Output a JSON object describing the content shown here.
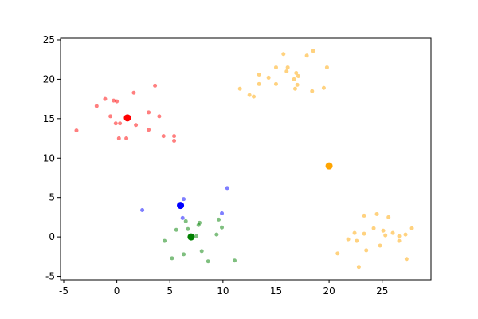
{
  "chart_data": {
    "type": "scatter",
    "xlim": [
      -5.3,
      29.6
    ],
    "ylim": [
      -5.45,
      25.2
    ],
    "xticks": [
      -5,
      0,
      5,
      10,
      15,
      20,
      25
    ],
    "yticks": [
      -5,
      0,
      5,
      10,
      15,
      20,
      25
    ],
    "series": [
      {
        "color": "red",
        "alpha": 0.5,
        "size": 2.5,
        "x": [
          -3.8,
          -1.9,
          -1.1,
          -0.3,
          0,
          -0.6,
          -0.1,
          0.3,
          0.2,
          0.9,
          1.6,
          1.8,
          3.0,
          3.6,
          4.0,
          3.0,
          4.4,
          5.4,
          5.4
        ],
        "values": [
          13.5,
          16.6,
          17.5,
          17.3,
          17.2,
          15.3,
          14.4,
          14.4,
          12.5,
          12.5,
          18.3,
          14.2,
          15.8,
          19.2,
          15.3,
          13.6,
          12.8,
          12.8,
          12.2
        ]
      },
      {
        "color": "orange",
        "alpha": 0.5,
        "size": 2.5,
        "x": [
          11.6,
          12.5,
          12.9,
          13.4,
          13.4,
          14.3,
          15.0,
          15.0,
          15.7,
          16.0,
          16.1,
          16.7,
          16.8,
          16.9,
          17.0,
          17.1,
          17.9,
          18.5,
          18.4,
          19.5,
          19.8,
          20.8,
          21.8,
          22.4,
          22.6,
          22.8,
          23.3,
          23.3,
          23.5,
          24.2,
          24.5,
          24.8,
          25.1,
          25.3,
          25.6,
          26.0,
          26.6,
          26.6,
          27.2,
          27.3,
          27.8
        ],
        "values": [
          18.8,
          18.0,
          17.8,
          19.4,
          20.6,
          20.2,
          21.5,
          19.4,
          23.2,
          21.0,
          21.5,
          20.0,
          18.8,
          20.8,
          19.3,
          20.4,
          23.0,
          23.6,
          18.5,
          18.9,
          21.5,
          -2.1,
          -0.3,
          0.5,
          -0.5,
          -3.8,
          2.7,
          0.4,
          -1.7,
          1.1,
          2.9,
          -1.1,
          0.8,
          0.2,
          2.5,
          0.5,
          0.1,
          -0.5,
          0.3,
          -2.8,
          1.1
        ]
      },
      {
        "color": "blue",
        "alpha": 0.5,
        "size": 2.5,
        "x": [
          2.4,
          6.3,
          6.2,
          9.9,
          10.4
        ],
        "values": [
          3.4,
          4.8,
          2.4,
          3.0,
          6.2
        ]
      },
      {
        "color": "green",
        "alpha": 0.5,
        "size": 2.5,
        "x": [
          4.5,
          5.2,
          5.6,
          6.3,
          6.5,
          6.7,
          6.9,
          7.5,
          7.7,
          7.8,
          8.0,
          8.6,
          9.4,
          9.6,
          9.9,
          11.1
        ],
        "values": [
          -0.5,
          -2.7,
          0.9,
          -2.2,
          2.0,
          1.0,
          0.1,
          0.1,
          1.5,
          1.8,
          -1.8,
          -3.1,
          0.3,
          2.2,
          1.2,
          -3.0
        ]
      },
      {
        "colors": [
          "red",
          "orange",
          "blue",
          "green"
        ],
        "alpha": 1,
        "size": 4.5,
        "x": [
          1.0,
          20.0,
          6.0,
          7.0
        ],
        "values": [
          15.1,
          9.0,
          4.0,
          0.0
        ]
      }
    ]
  }
}
